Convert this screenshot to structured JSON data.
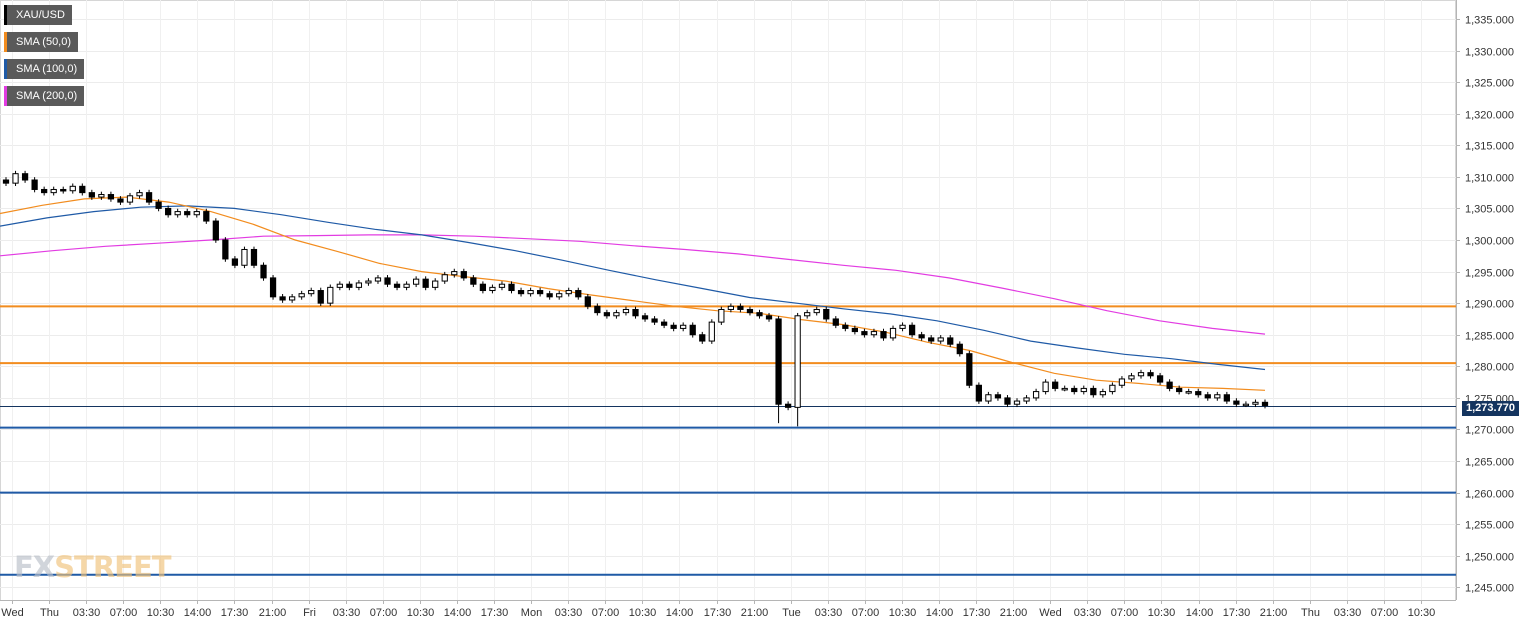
{
  "chart_data": {
    "type": "candlestick",
    "symbol": "XAU/USD",
    "legend": [
      {
        "label": "XAU/USD",
        "color": "#000000"
      },
      {
        "label": "SMA (50,0)",
        "color": "#f28c1e"
      },
      {
        "label": "SMA (100,0)",
        "color": "#1f5aa6"
      },
      {
        "label": "SMA (200,0)",
        "color": "#e23ce2"
      }
    ],
    "ylim": [
      1243,
      1338
    ],
    "y_ticks": [
      "1,245.000",
      "1,250.000",
      "1,255.000",
      "1,260.000",
      "1,265.000",
      "1,270.000",
      "1,275.000",
      "1,280.000",
      "1,285.000",
      "1,290.000",
      "1,295.000",
      "1,300.000",
      "1,305.000",
      "1,310.000",
      "1,315.000",
      "1,320.000",
      "1,325.000",
      "1,330.000",
      "1,335.000"
    ],
    "x_ticks": [
      "Wed",
      "Thu",
      "03:30",
      "07:00",
      "10:30",
      "14:00",
      "17:30",
      "21:00",
      "Fri",
      "03:30",
      "07:00",
      "10:30",
      "14:00",
      "17:30",
      "Mon",
      "03:30",
      "07:00",
      "10:30",
      "14:00",
      "17:30",
      "21:00",
      "Tue",
      "03:30",
      "07:00",
      "10:30",
      "14:00",
      "17:30",
      "21:00",
      "Wed",
      "03:30",
      "07:00",
      "10:30",
      "14:00",
      "17:30",
      "21:00",
      "Thu",
      "03:30",
      "07:00",
      "10:30"
    ],
    "current_price": "1,273.770",
    "current_price_value": 1273.77,
    "horizontal_levels": [
      {
        "value": 1289.5,
        "color": "#f28c1e"
      },
      {
        "value": 1280.5,
        "color": "#f28c1e"
      },
      {
        "value": 1270.3,
        "color": "#1f5aa6"
      },
      {
        "value": 1260.0,
        "color": "#1f5aa6"
      },
      {
        "value": 1247.0,
        "color": "#1f5aa6"
      }
    ],
    "price_path": [
      1309.0,
      1310.5,
      1309.5,
      1308.0,
      1307.5,
      1308.0,
      1307.8,
      1308.5,
      1307.5,
      1306.8,
      1307.2,
      1306.5,
      1306.0,
      1307.0,
      1307.5,
      1306.0,
      1305.0,
      1304.0,
      1304.5,
      1304.0,
      1304.5,
      1303.0,
      1300.0,
      1297.0,
      1296.0,
      1298.5,
      1296.0,
      1294.0,
      1291.0,
      1290.5,
      1291.0,
      1291.5,
      1292.0,
      1290.0,
      1292.5,
      1293.0,
      1292.5,
      1293.2,
      1293.5,
      1294.0,
      1293.0,
      1292.5,
      1293.0,
      1293.8,
      1292.5,
      1293.5,
      1294.5,
      1295.0,
      1294.0,
      1293.0,
      1292.0,
      1292.5,
      1293.0,
      1292.0,
      1291.5,
      1292.0,
      1291.5,
      1291.0,
      1291.5,
      1292.0,
      1291.0,
      1289.5,
      1288.5,
      1288.0,
      1288.5,
      1289.0,
      1288.0,
      1287.5,
      1287.0,
      1286.5,
      1286.0,
      1286.5,
      1285.0,
      1284.0,
      1287.0,
      1289.0,
      1289.5,
      1289.0,
      1288.5,
      1288.0,
      1287.5,
      1274.0,
      1273.5,
      1288.0,
      1288.5,
      1289.0,
      1287.5,
      1286.5,
      1286.0,
      1285.5,
      1285.0,
      1285.5,
      1284.5,
      1286.0,
      1286.5,
      1285.0,
      1284.5,
      1284.0,
      1284.5,
      1283.5,
      1282.0,
      1277.0,
      1274.5,
      1275.5,
      1275.0,
      1274.0,
      1274.5,
      1275.0,
      1276.0,
      1277.5,
      1276.5,
      1276.5,
      1276.0,
      1276.5,
      1275.5,
      1276.0,
      1277.0,
      1278.0,
      1278.5,
      1279.0,
      1278.5,
      1277.5,
      1276.5,
      1276.0,
      1276.0,
      1275.5,
      1275.0,
      1275.5,
      1274.5,
      1274.0,
      1274.0,
      1274.3,
      1273.8
    ],
    "sma50": [
      1304.2,
      1305.5,
      1306.5,
      1306.8,
      1306.0,
      1304.5,
      1302.5,
      1300.0,
      1298.2,
      1296.3,
      1295.0,
      1294.2,
      1293.5,
      1292.3,
      1291.3,
      1290.4,
      1289.5,
      1288.8,
      1288.4,
      1287.4,
      1286.6,
      1285.4,
      1283.8,
      1282.5,
      1280.6,
      1278.9,
      1277.8,
      1277.3,
      1276.7,
      1276.5,
      1276.2
    ],
    "sma100": [
      1302.2,
      1303.5,
      1304.5,
      1305.2,
      1305.4,
      1305.0,
      1304.0,
      1302.8,
      1301.7,
      1300.8,
      1299.6,
      1298.3,
      1296.8,
      1295.2,
      1293.7,
      1292.3,
      1290.9,
      1290.0,
      1289.1,
      1288.3,
      1287.2,
      1285.7,
      1284.0,
      1282.9,
      1281.9,
      1281.2,
      1280.3,
      1279.5
    ],
    "sma200": [
      1297.5,
      1298.3,
      1299.0,
      1299.5,
      1300.0,
      1300.6,
      1300.7,
      1300.8,
      1300.8,
      1300.6,
      1300.2,
      1299.8,
      1299.1,
      1298.5,
      1297.8,
      1296.9,
      1296.0,
      1295.2,
      1294.0,
      1292.4,
      1290.7,
      1288.8,
      1287.2,
      1286.0,
      1285.1
    ]
  }
}
